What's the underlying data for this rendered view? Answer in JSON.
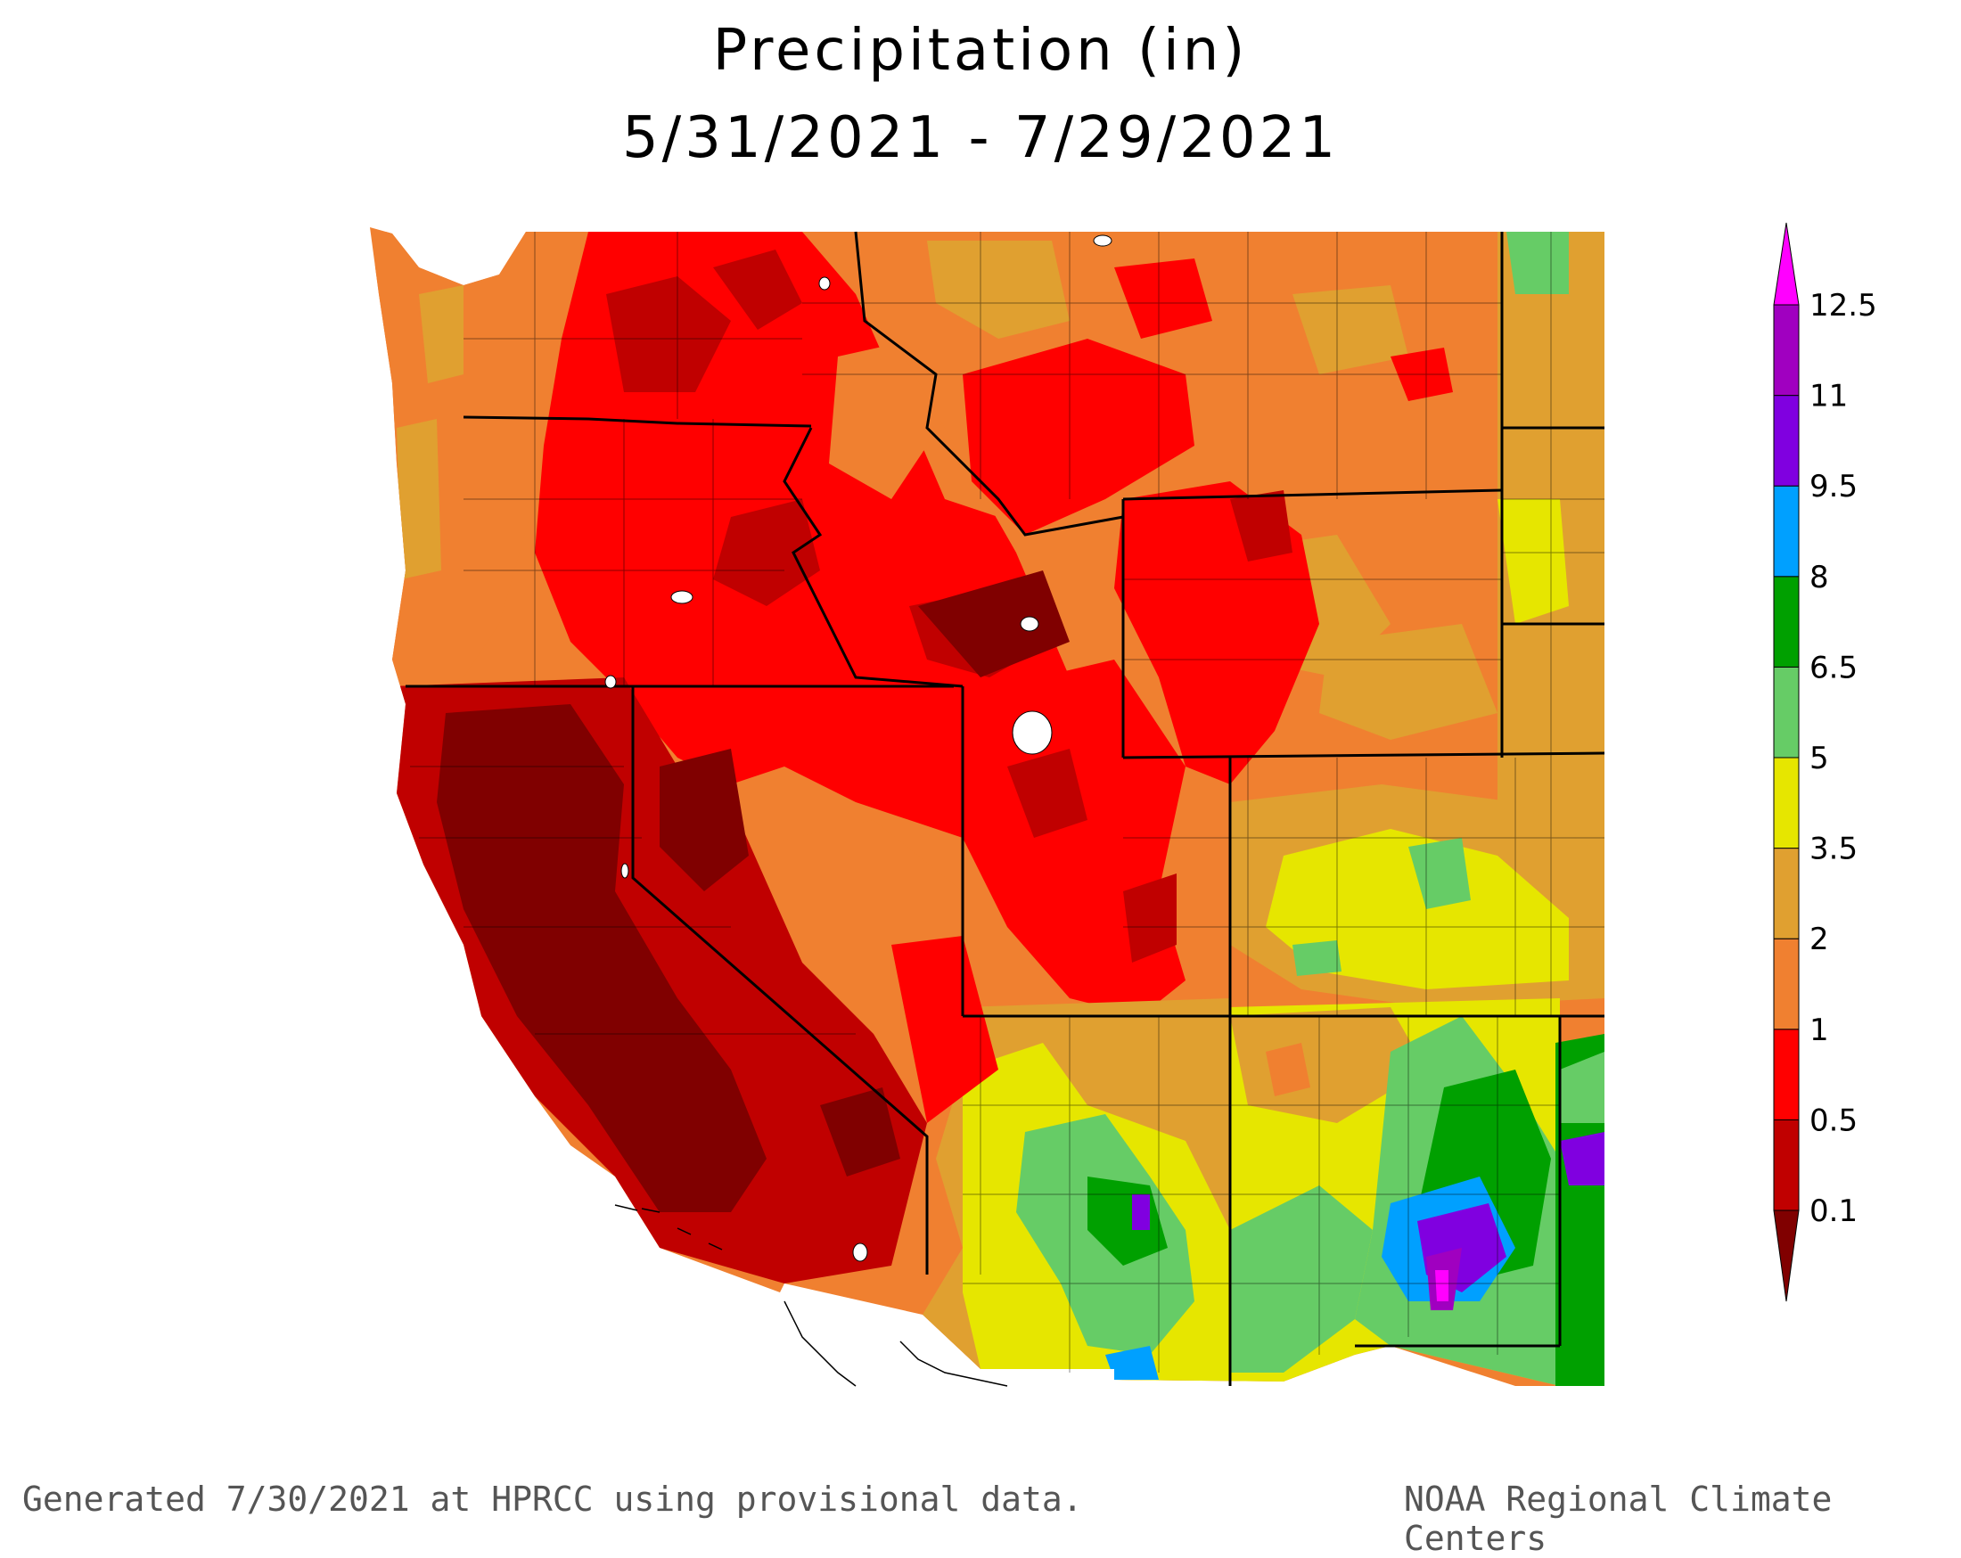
{
  "map": {
    "title_line1": "Precipitation (in)",
    "title_line2": "5/31/2021 - 7/29/2021",
    "footer_left": "Generated 7/30/2021 at HPRCC using provisional data.",
    "footer_right": "NOAA Regional Climate Centers"
  },
  "colorbar": {
    "labels": [
      "0.1",
      "0.5",
      "1",
      "2",
      "3.5",
      "5",
      "6.5",
      "8",
      "9.5",
      "11",
      "12.5"
    ],
    "colors": [
      "#800000",
      "#c00000",
      "#ff0000",
      "#f08030",
      "#e0a030",
      "#e6e600",
      "#66cc66",
      "#00a000",
      "#00a0ff",
      "#8000e0",
      "#a000c0",
      "#ff00ff"
    ]
  }
}
